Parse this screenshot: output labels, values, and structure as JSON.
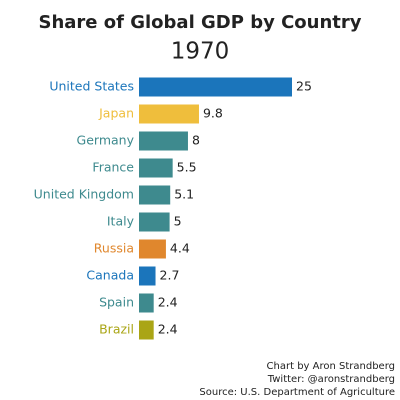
{
  "chart_data": {
    "type": "bar",
    "orientation": "horizontal",
    "title": "Share of Global GDP by Country",
    "subtitle": "1970",
    "categories": [
      "United States",
      "Japan",
      "Germany",
      "France",
      "United Kingdom",
      "Italy",
      "Russia",
      "Canada",
      "Spain",
      "Brazil"
    ],
    "values": [
      25,
      9.8,
      8,
      5.5,
      5.1,
      5,
      4.4,
      2.7,
      2.4,
      2.4
    ],
    "colors": [
      "#1b75bb",
      "#efbe3c",
      "#3e8a8e",
      "#3e8a8e",
      "#3e8a8e",
      "#3e8a8e",
      "#e0872d",
      "#1b75bb",
      "#3e8a8e",
      "#aaa515"
    ],
    "notes": [
      "Chart by Aron Strandberg",
      "Twitter: @aronstrandberg",
      "Source: U.S. Department of Agriculture"
    ]
  }
}
